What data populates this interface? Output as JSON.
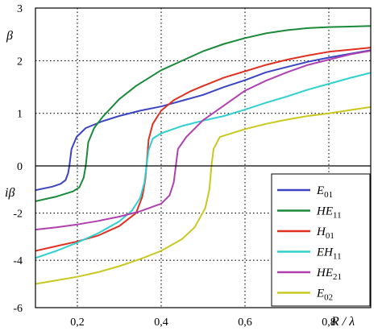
{
  "chart_data": {
    "type": "line",
    "xlabel": "R / λ",
    "ylabel_top": "β",
    "ylabel_bottom": "iβ",
    "xlim": [
      0.1,
      0.9
    ],
    "ylim": [
      -6,
      3
    ],
    "x_ticks": [
      {
        "value": 0.2,
        "label": "0,2"
      },
      {
        "value": 0.4,
        "label": "0,4"
      },
      {
        "value": 0.6,
        "label": "0,6"
      },
      {
        "value": 0.8,
        "label": "0,8"
      }
    ],
    "y_ticks": [
      {
        "value": 3,
        "label": "3"
      },
      {
        "value": 2,
        "label": "2"
      },
      {
        "value": 1,
        "label": "1"
      },
      {
        "value": 0,
        "label": "0"
      },
      {
        "value": -2,
        "label": "-2"
      },
      {
        "value": -4,
        "label": "-4"
      },
      {
        "value": -6,
        "label": "-6"
      }
    ],
    "y_scale_note": "piecewise: 0 to 3 uses one unit per major interval; 0 to -6 uses two units per major interval",
    "grid": "dotted at tick positions",
    "legend_position": "bottom-right",
    "series": [
      {
        "name": "E",
        "sub": "01",
        "color": "#3a44c4",
        "points": [
          [
            0.1,
            -1.03
          ],
          [
            0.14,
            -0.88
          ],
          [
            0.16,
            -0.76
          ],
          [
            0.172,
            -0.6
          ],
          [
            0.178,
            -0.3
          ],
          [
            0.181,
            0.0
          ],
          [
            0.186,
            0.32
          ],
          [
            0.198,
            0.55
          ],
          [
            0.22,
            0.72
          ],
          [
            0.26,
            0.85
          ],
          [
            0.3,
            0.95
          ],
          [
            0.35,
            1.05
          ],
          [
            0.4,
            1.13
          ],
          [
            0.45,
            1.24
          ],
          [
            0.5,
            1.35
          ],
          [
            0.55,
            1.5
          ],
          [
            0.6,
            1.63
          ],
          [
            0.65,
            1.78
          ],
          [
            0.7,
            1.88
          ],
          [
            0.75,
            1.98
          ],
          [
            0.8,
            2.06
          ],
          [
            0.85,
            2.13
          ],
          [
            0.9,
            2.2
          ]
        ]
      },
      {
        "name": "HE",
        "sub": "11",
        "color": "#1a8a3a",
        "points": [
          [
            0.1,
            -1.5
          ],
          [
            0.15,
            -1.3
          ],
          [
            0.19,
            -1.08
          ],
          [
            0.205,
            -0.9
          ],
          [
            0.215,
            -0.5
          ],
          [
            0.22,
            0.0
          ],
          [
            0.226,
            0.45
          ],
          [
            0.24,
            0.72
          ],
          [
            0.26,
            0.93
          ],
          [
            0.3,
            1.27
          ],
          [
            0.34,
            1.52
          ],
          [
            0.4,
            1.82
          ],
          [
            0.45,
            2.0
          ],
          [
            0.5,
            2.18
          ],
          [
            0.55,
            2.32
          ],
          [
            0.6,
            2.43
          ],
          [
            0.65,
            2.52
          ],
          [
            0.7,
            2.58
          ],
          [
            0.75,
            2.62
          ],
          [
            0.8,
            2.64
          ],
          [
            0.85,
            2.65
          ],
          [
            0.9,
            2.66
          ]
        ]
      },
      {
        "name": "H",
        "sub": "01",
        "color": "#e03020",
        "points": [
          [
            0.1,
            -3.6
          ],
          [
            0.15,
            -3.4
          ],
          [
            0.2,
            -3.2
          ],
          [
            0.25,
            -2.95
          ],
          [
            0.3,
            -2.55
          ],
          [
            0.34,
            -2.0
          ],
          [
            0.355,
            -1.3
          ],
          [
            0.362,
            -0.6
          ],
          [
            0.365,
            0.0
          ],
          [
            0.37,
            0.5
          ],
          [
            0.38,
            0.8
          ],
          [
            0.4,
            1.05
          ],
          [
            0.43,
            1.25
          ],
          [
            0.47,
            1.42
          ],
          [
            0.5,
            1.52
          ],
          [
            0.55,
            1.68
          ],
          [
            0.6,
            1.8
          ],
          [
            0.65,
            1.92
          ],
          [
            0.7,
            2.02
          ],
          [
            0.75,
            2.1
          ],
          [
            0.8,
            2.17
          ],
          [
            0.85,
            2.21
          ],
          [
            0.9,
            2.25
          ]
        ]
      },
      {
        "name": "EH",
        "sub": "11",
        "color": "#30d0d0",
        "points": [
          [
            0.1,
            -3.9
          ],
          [
            0.15,
            -3.6
          ],
          [
            0.2,
            -3.25
          ],
          [
            0.25,
            -2.85
          ],
          [
            0.3,
            -2.35
          ],
          [
            0.33,
            -1.9
          ],
          [
            0.35,
            -1.35
          ],
          [
            0.36,
            -0.7
          ],
          [
            0.365,
            0.0
          ],
          [
            0.37,
            0.3
          ],
          [
            0.38,
            0.52
          ],
          [
            0.4,
            0.62
          ],
          [
            0.45,
            0.76
          ],
          [
            0.5,
            0.86
          ],
          [
            0.55,
            0.95
          ],
          [
            0.6,
            1.07
          ],
          [
            0.65,
            1.2
          ],
          [
            0.7,
            1.32
          ],
          [
            0.75,
            1.45
          ],
          [
            0.8,
            1.56
          ],
          [
            0.85,
            1.67
          ],
          [
            0.9,
            1.77
          ]
        ]
      },
      {
        "name": "HE",
        "sub": "21",
        "color": "#b040b0",
        "points": [
          [
            0.1,
            -2.7
          ],
          [
            0.15,
            -2.6
          ],
          [
            0.2,
            -2.48
          ],
          [
            0.25,
            -2.33
          ],
          [
            0.3,
            -2.15
          ],
          [
            0.35,
            -1.92
          ],
          [
            0.4,
            -1.6
          ],
          [
            0.42,
            -1.25
          ],
          [
            0.43,
            -0.7
          ],
          [
            0.435,
            0.0
          ],
          [
            0.44,
            0.32
          ],
          [
            0.46,
            0.55
          ],
          [
            0.5,
            0.87
          ],
          [
            0.55,
            1.15
          ],
          [
            0.6,
            1.43
          ],
          [
            0.65,
            1.62
          ],
          [
            0.7,
            1.78
          ],
          [
            0.75,
            1.92
          ],
          [
            0.8,
            2.02
          ],
          [
            0.85,
            2.12
          ],
          [
            0.9,
            2.19
          ]
        ]
      },
      {
        "name": "E",
        "sub": "02",
        "color": "#c8c820",
        "points": [
          [
            0.1,
            -5.0
          ],
          [
            0.15,
            -4.85
          ],
          [
            0.2,
            -4.7
          ],
          [
            0.25,
            -4.5
          ],
          [
            0.3,
            -4.25
          ],
          [
            0.35,
            -3.95
          ],
          [
            0.4,
            -3.6
          ],
          [
            0.45,
            -3.1
          ],
          [
            0.48,
            -2.6
          ],
          [
            0.505,
            -1.8
          ],
          [
            0.515,
            -1.0
          ],
          [
            0.52,
            0.0
          ],
          [
            0.525,
            0.32
          ],
          [
            0.54,
            0.55
          ],
          [
            0.6,
            0.7
          ],
          [
            0.65,
            0.8
          ],
          [
            0.7,
            0.88
          ],
          [
            0.75,
            0.95
          ],
          [
            0.8,
            1.0
          ],
          [
            0.85,
            1.06
          ],
          [
            0.9,
            1.12
          ]
        ]
      }
    ]
  }
}
